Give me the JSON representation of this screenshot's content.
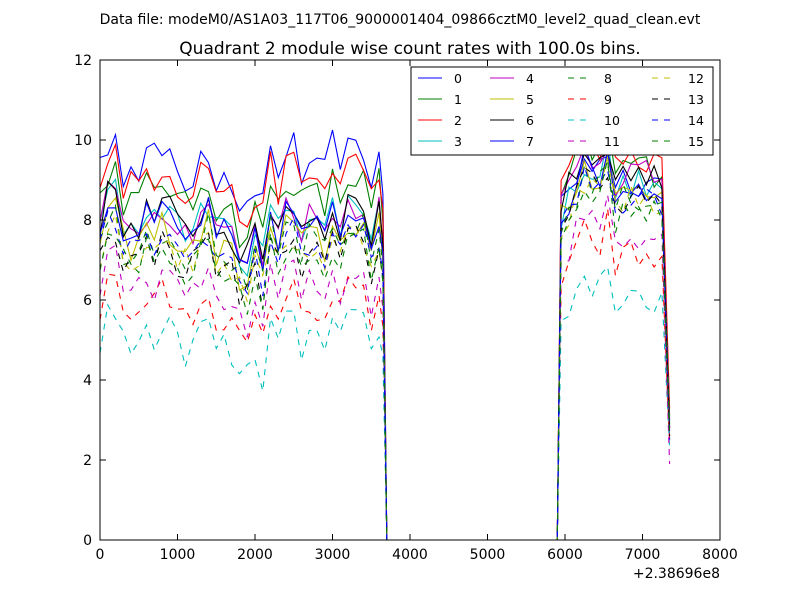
{
  "chart_data": {
    "type": "line",
    "suptitle": "Data file: modeM0/AS1A03_117T06_9000001404_09866cztM0_level2_quad_clean.evt",
    "title": "Quadrant 2 module wise count rates with 100.0s bins.",
    "xlabel": "",
    "ylabel": "",
    "x_offset_label": "+2.38696e8",
    "xlim": [
      0,
      8000
    ],
    "ylim": [
      0,
      12
    ],
    "x_ticks": [
      0,
      1000,
      2000,
      3000,
      4000,
      5000,
      6000,
      7000,
      8000
    ],
    "y_ticks": [
      0,
      2,
      4,
      6,
      8,
      10,
      12
    ],
    "grid": false,
    "legend": {
      "position": "top-right",
      "columns": 4
    },
    "x": {
      "segment1": [
        0,
        100,
        200,
        300,
        400,
        500,
        600,
        700,
        800,
        900,
        1000,
        1100,
        1200,
        1300,
        1400,
        1500,
        1600,
        1700,
        1800,
        1900,
        2000,
        2100,
        2200,
        2300,
        2400,
        2500,
        2600,
        2700,
        2800,
        2900,
        3000,
        3100,
        3200,
        3300,
        3400,
        3500,
        3600,
        3650
      ],
      "gap": [
        3700,
        5000,
        5900
      ],
      "segment2": [
        5950,
        6050,
        6150,
        6250,
        6350,
        6450,
        6550,
        6650,
        6750,
        6850,
        6950,
        7050,
        7150,
        7250,
        7350
      ]
    },
    "series": [
      {
        "name": "0",
        "color": "#0000ff",
        "dash": false,
        "level1": 9.4,
        "level2": 9.0,
        "noise": 0.5,
        "end": 3.0
      },
      {
        "name": "1",
        "color": "#007f00",
        "dash": false,
        "level1": 8.6,
        "level2": 9.3,
        "noise": 0.4,
        "end": 3.1
      },
      {
        "name": "2",
        "color": "#ff0000",
        "dash": false,
        "level1": 9.0,
        "level2": 9.4,
        "noise": 0.4,
        "end": 3.3
      },
      {
        "name": "3",
        "color": "#00bfbf",
        "dash": false,
        "level1": 8.0,
        "level2": 8.8,
        "noise": 0.4,
        "end": 2.9
      },
      {
        "name": "4",
        "color": "#bf00bf",
        "dash": false,
        "level1": 8.0,
        "level2": 9.1,
        "noise": 0.4,
        "end": 2.8
      },
      {
        "name": "5",
        "color": "#bfbf00",
        "dash": false,
        "level1": 7.5,
        "level2": 8.7,
        "noise": 0.4,
        "end": 2.9
      },
      {
        "name": "6",
        "color": "#000000",
        "dash": false,
        "level1": 8.0,
        "level2": 9.1,
        "noise": 0.4,
        "end": 2.8
      },
      {
        "name": "7",
        "color": "#0000ff",
        "dash": false,
        "level1": 7.8,
        "level2": 8.8,
        "noise": 0.4,
        "end": 2.5
      },
      {
        "name": "8",
        "color": "#007f00",
        "dash": true,
        "level1": 7.4,
        "level2": 8.5,
        "noise": 0.4,
        "end": 2.7
      },
      {
        "name": "9",
        "color": "#ff0000",
        "dash": true,
        "level1": 5.8,
        "level2": 7.0,
        "noise": 0.4,
        "end": 2.4
      },
      {
        "name": "10",
        "color": "#00bfbf",
        "dash": true,
        "level1": 5.0,
        "level2": 6.0,
        "noise": 0.4,
        "end": 2.3
      },
      {
        "name": "11",
        "color": "#bf00bf",
        "dash": true,
        "level1": 6.3,
        "level2": 7.6,
        "noise": 0.4,
        "end": 1.9
      },
      {
        "name": "12",
        "color": "#bfbf00",
        "dash": true,
        "level1": 7.2,
        "level2": 8.4,
        "noise": 0.4,
        "end": 2.6
      },
      {
        "name": "13",
        "color": "#000000",
        "dash": true,
        "level1": 7.1,
        "level2": 8.5,
        "noise": 0.4,
        "end": 2.6
      },
      {
        "name": "14",
        "color": "#0000ff",
        "dash": true,
        "level1": 7.3,
        "level2": 8.4,
        "noise": 0.4,
        "end": 2.7
      },
      {
        "name": "15",
        "color": "#007f00",
        "dash": true,
        "level1": 7.0,
        "level2": 8.2,
        "noise": 0.4,
        "end": 2.6
      }
    ]
  }
}
